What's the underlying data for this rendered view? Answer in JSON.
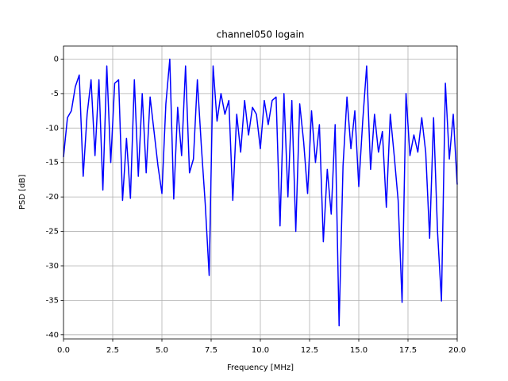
{
  "chart_data": {
    "type": "line",
    "title": "channel050 logain",
    "xlabel": "Frequency [MHz]",
    "ylabel": "PSD [dB]",
    "color": "#0000ff",
    "grid": true,
    "xlim": [
      0,
      20
    ],
    "ylim": [
      -40.6,
      1.9
    ],
    "xticks": [
      {
        "value": 0,
        "label": "0.0"
      },
      2.5,
      {
        "value": 5,
        "label": "5.0"
      },
      7.5,
      {
        "value": 10,
        "label": "10.0"
      },
      12.5,
      {
        "value": 15,
        "label": "15.0"
      },
      17.5,
      {
        "value": 20,
        "label": "20.0"
      }
    ],
    "yticks": [
      0,
      -5,
      -10,
      -15,
      -20,
      -25,
      -30,
      -35,
      -40
    ],
    "x": [
      0,
      0.2,
      0.4,
      0.6,
      0.8,
      1,
      1.2,
      1.4,
      1.6,
      1.8,
      2,
      2.2,
      2.4,
      2.6,
      2.8,
      3,
      3.2,
      3.4,
      3.6,
      3.8,
      4,
      4.2,
      4.4,
      4.6,
      4.8,
      5,
      5.2,
      5.4,
      5.6,
      5.8,
      6,
      6.2,
      6.4,
      6.6,
      6.8,
      7,
      7.2,
      7.4,
      7.6,
      7.8,
      8,
      8.2,
      8.4,
      8.6,
      8.8,
      9,
      9.2,
      9.4,
      9.6,
      9.8,
      10,
      10.2,
      10.4,
      10.6,
      10.8,
      11,
      11.2,
      11.4,
      11.6,
      11.8,
      12,
      12.2,
      12.4,
      12.6,
      12.8,
      13,
      13.2,
      13.4,
      13.6,
      13.8,
      14,
      14.2,
      14.4,
      14.6,
      14.8,
      15,
      15.2,
      15.4,
      15.6,
      15.8,
      16,
      16.2,
      16.4,
      16.6,
      16.8,
      17,
      17.2,
      17.4,
      17.6,
      17.8,
      18,
      18.2,
      18.4,
      18.6,
      18.8,
      19,
      19.2,
      19.4,
      19.6,
      19.8,
      20
    ],
    "values": [
      -14.2,
      -8.5,
      -7.5,
      -4.0,
      -2.3,
      -17.0,
      -8.0,
      -3.0,
      -14.0,
      -3.0,
      -19.0,
      -1.0,
      -15.0,
      -3.5,
      -3.0,
      -20.5,
      -11.5,
      -20.2,
      -3.0,
      -17.0,
      -5.0,
      -16.5,
      -5.5,
      -10.5,
      -15.5,
      -19.5,
      -6.5,
      0.0,
      -20.3,
      -7.0,
      -14.0,
      -1.0,
      -16.5,
      -14.5,
      -3.0,
      -12.5,
      -21.0,
      -31.4,
      -1.0,
      -9.0,
      -5.0,
      -8.0,
      -6.0,
      -20.5,
      -8.0,
      -13.5,
      -6.0,
      -11.0,
      -7.0,
      -8.0,
      -13.0,
      -6.0,
      -9.5,
      -6.0,
      -5.5,
      -24.2,
      -5.0,
      -20.0,
      -6.0,
      -25.0,
      -6.5,
      -12.0,
      -19.5,
      -7.5,
      -15.0,
      -9.5,
      -26.5,
      -16.0,
      -22.5,
      -9.5,
      -38.7,
      -15.5,
      -5.5,
      -13.0,
      -7.5,
      -18.5,
      -9.0,
      -1.0,
      -16.0,
      -8.0,
      -13.5,
      -10.5,
      -21.5,
      -8.0,
      -14.0,
      -20.5,
      -35.3,
      -5.0,
      -14.0,
      -11.0,
      -13.5,
      -8.5,
      -13.5,
      -26.0,
      -8.5,
      -25.0,
      -35.1,
      -3.5,
      -14.5,
      -8.0,
      -18.2
    ]
  }
}
